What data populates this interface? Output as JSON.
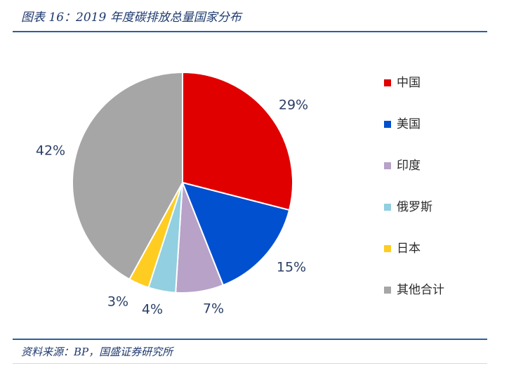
{
  "figure": {
    "title": "图表 16：2019 年度碳排放总量国家分布",
    "source": "资料来源：BP，国盛证券研究所"
  },
  "chart_data": {
    "type": "pie",
    "categories": [
      "中国",
      "美国",
      "印度",
      "俄罗斯",
      "日本",
      "其他合计"
    ],
    "values": [
      29,
      15,
      7,
      4,
      3,
      42
    ],
    "labels": [
      "29%",
      "15%",
      "7%",
      "4%",
      "3%",
      "42%"
    ],
    "colors": [
      "#e00000",
      "#0050d0",
      "#b8a2c8",
      "#92cfe0",
      "#ffcc22",
      "#a6a6a6"
    ],
    "unit": "%",
    "legend_position": "right"
  }
}
